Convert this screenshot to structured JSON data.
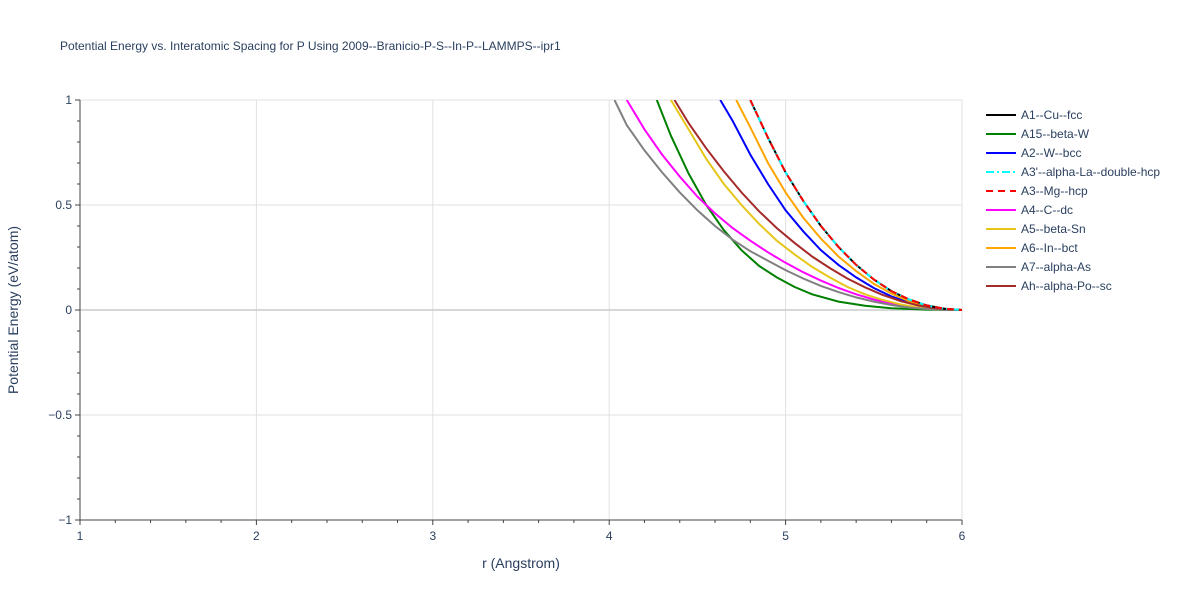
{
  "chart_data": {
    "type": "line",
    "title": "Potential Energy vs. Interatomic Spacing for P Using 2009--Branicio-P-S--In-P--LAMMPS--ipr1",
    "xlabel": "r (Angstrom)",
    "ylabel": "Potential Energy (eV/atom)",
    "xlim": [
      1,
      6
    ],
    "ylim": [
      -1,
      1
    ],
    "xticks": [
      1,
      2,
      3,
      4,
      5,
      6
    ],
    "xtick_labels": [
      "1",
      "2",
      "3",
      "4",
      "5",
      "6"
    ],
    "yticks": [
      -1,
      -0.5,
      0,
      0.5,
      1
    ],
    "ytick_labels": [
      "−1",
      "−0.5",
      "0",
      "0.5",
      "1"
    ],
    "grid": true,
    "legend_position": "right",
    "series": [
      {
        "name": "A1--Cu--fcc",
        "color": "#000000",
        "dash": "solid",
        "x": [
          4.8,
          4.9,
          5.0,
          5.1,
          5.2,
          5.3,
          5.4,
          5.5,
          5.6,
          5.7,
          5.8,
          5.9,
          6.0
        ],
        "y": [
          1.0,
          0.82,
          0.655,
          0.52,
          0.4,
          0.3,
          0.215,
          0.145,
          0.09,
          0.05,
          0.022,
          0.006,
          0.0
        ]
      },
      {
        "name": "A15--beta-W",
        "color": "#008000",
        "dash": "solid",
        "x": [
          4.27,
          4.35,
          4.45,
          4.55,
          4.65,
          4.75,
          4.85,
          4.95,
          5.05,
          5.15,
          5.3,
          5.45,
          5.6,
          5.8,
          6.0
        ],
        "y": [
          1.0,
          0.83,
          0.65,
          0.5,
          0.38,
          0.285,
          0.21,
          0.155,
          0.11,
          0.075,
          0.04,
          0.02,
          0.008,
          0.002,
          0.0
        ]
      },
      {
        "name": "A2--W--bcc",
        "color": "#0000ff",
        "dash": "solid",
        "x": [
          4.63,
          4.7,
          4.8,
          4.9,
          5.0,
          5.1,
          5.2,
          5.3,
          5.4,
          5.5,
          5.6,
          5.7,
          5.8,
          5.9,
          6.0
        ],
        "y": [
          1.0,
          0.9,
          0.74,
          0.6,
          0.475,
          0.375,
          0.285,
          0.215,
          0.155,
          0.105,
          0.065,
          0.035,
          0.015,
          0.004,
          0.0
        ]
      },
      {
        "name": "A3'--alpha-La--double-hcp",
        "color": "#00ffff",
        "dash": "dashdot",
        "x": [
          4.8,
          4.9,
          5.0,
          5.1,
          5.2,
          5.3,
          5.4,
          5.5,
          5.6,
          5.7,
          5.8,
          5.9,
          6.0
        ],
        "y": [
          1.0,
          0.82,
          0.655,
          0.52,
          0.4,
          0.3,
          0.215,
          0.145,
          0.09,
          0.05,
          0.022,
          0.006,
          0.0
        ]
      },
      {
        "name": "A3--Mg--hcp",
        "color": "#ff0000",
        "dash": "dash",
        "x": [
          4.8,
          4.9,
          5.0,
          5.1,
          5.2,
          5.3,
          5.4,
          5.5,
          5.6,
          5.7,
          5.8,
          5.9,
          6.0
        ],
        "y": [
          1.0,
          0.82,
          0.655,
          0.52,
          0.4,
          0.3,
          0.215,
          0.145,
          0.09,
          0.05,
          0.022,
          0.006,
          0.0
        ]
      },
      {
        "name": "A4--C--dc",
        "color": "#ff00ff",
        "dash": "solid",
        "x": [
          4.1,
          4.2,
          4.3,
          4.4,
          4.5,
          4.6,
          4.7,
          4.8,
          4.9,
          5.0,
          5.1,
          5.2,
          5.3,
          5.4,
          5.5,
          5.6,
          5.7,
          5.8,
          5.9,
          6.0
        ],
        "y": [
          1.0,
          0.86,
          0.74,
          0.635,
          0.54,
          0.46,
          0.39,
          0.33,
          0.275,
          0.225,
          0.18,
          0.14,
          0.105,
          0.075,
          0.05,
          0.03,
          0.016,
          0.007,
          0.002,
          0.0
        ]
      },
      {
        "name": "A5--beta-Sn",
        "color": "#e6c619",
        "dash": "solid",
        "x": [
          4.35,
          4.45,
          4.55,
          4.65,
          4.75,
          4.85,
          4.95,
          5.05,
          5.15,
          5.25,
          5.35,
          5.45,
          5.55,
          5.65,
          5.75,
          5.85,
          6.0
        ],
        "y": [
          1.0,
          0.86,
          0.72,
          0.6,
          0.5,
          0.41,
          0.33,
          0.265,
          0.205,
          0.155,
          0.11,
          0.075,
          0.048,
          0.027,
          0.012,
          0.004,
          0.0
        ]
      },
      {
        "name": "A6--In--bct",
        "color": "#ffa500",
        "dash": "solid",
        "x": [
          4.72,
          4.8,
          4.9,
          5.0,
          5.1,
          5.2,
          5.3,
          5.4,
          5.5,
          5.6,
          5.7,
          5.8,
          5.9,
          6.0
        ],
        "y": [
          1.0,
          0.87,
          0.7,
          0.56,
          0.44,
          0.34,
          0.255,
          0.185,
          0.125,
          0.078,
          0.042,
          0.018,
          0.005,
          0.0
        ]
      },
      {
        "name": "A7--alpha-As",
        "color": "#808080",
        "dash": "solid",
        "x": [
          4.03,
          4.1,
          4.2,
          4.3,
          4.4,
          4.5,
          4.6,
          4.7,
          4.8,
          4.9,
          5.0,
          5.1,
          5.2,
          5.3,
          5.4,
          5.5,
          5.6,
          5.7,
          5.8,
          5.9,
          6.0
        ],
        "y": [
          1.0,
          0.88,
          0.76,
          0.655,
          0.56,
          0.475,
          0.4,
          0.335,
          0.28,
          0.235,
          0.19,
          0.15,
          0.115,
          0.085,
          0.06,
          0.04,
          0.024,
          0.012,
          0.005,
          0.001,
          0.0
        ]
      },
      {
        "name": "Ah--alpha-Po--sc",
        "color": "#a52a2a",
        "dash": "solid",
        "x": [
          4.37,
          4.45,
          4.55,
          4.65,
          4.75,
          4.85,
          4.95,
          5.05,
          5.15,
          5.25,
          5.35,
          5.45,
          5.55,
          5.65,
          5.75,
          5.85,
          6.0
        ],
        "y": [
          1.0,
          0.89,
          0.77,
          0.66,
          0.56,
          0.47,
          0.39,
          0.32,
          0.255,
          0.2,
          0.15,
          0.108,
          0.072,
          0.043,
          0.022,
          0.008,
          0.0
        ]
      }
    ]
  }
}
